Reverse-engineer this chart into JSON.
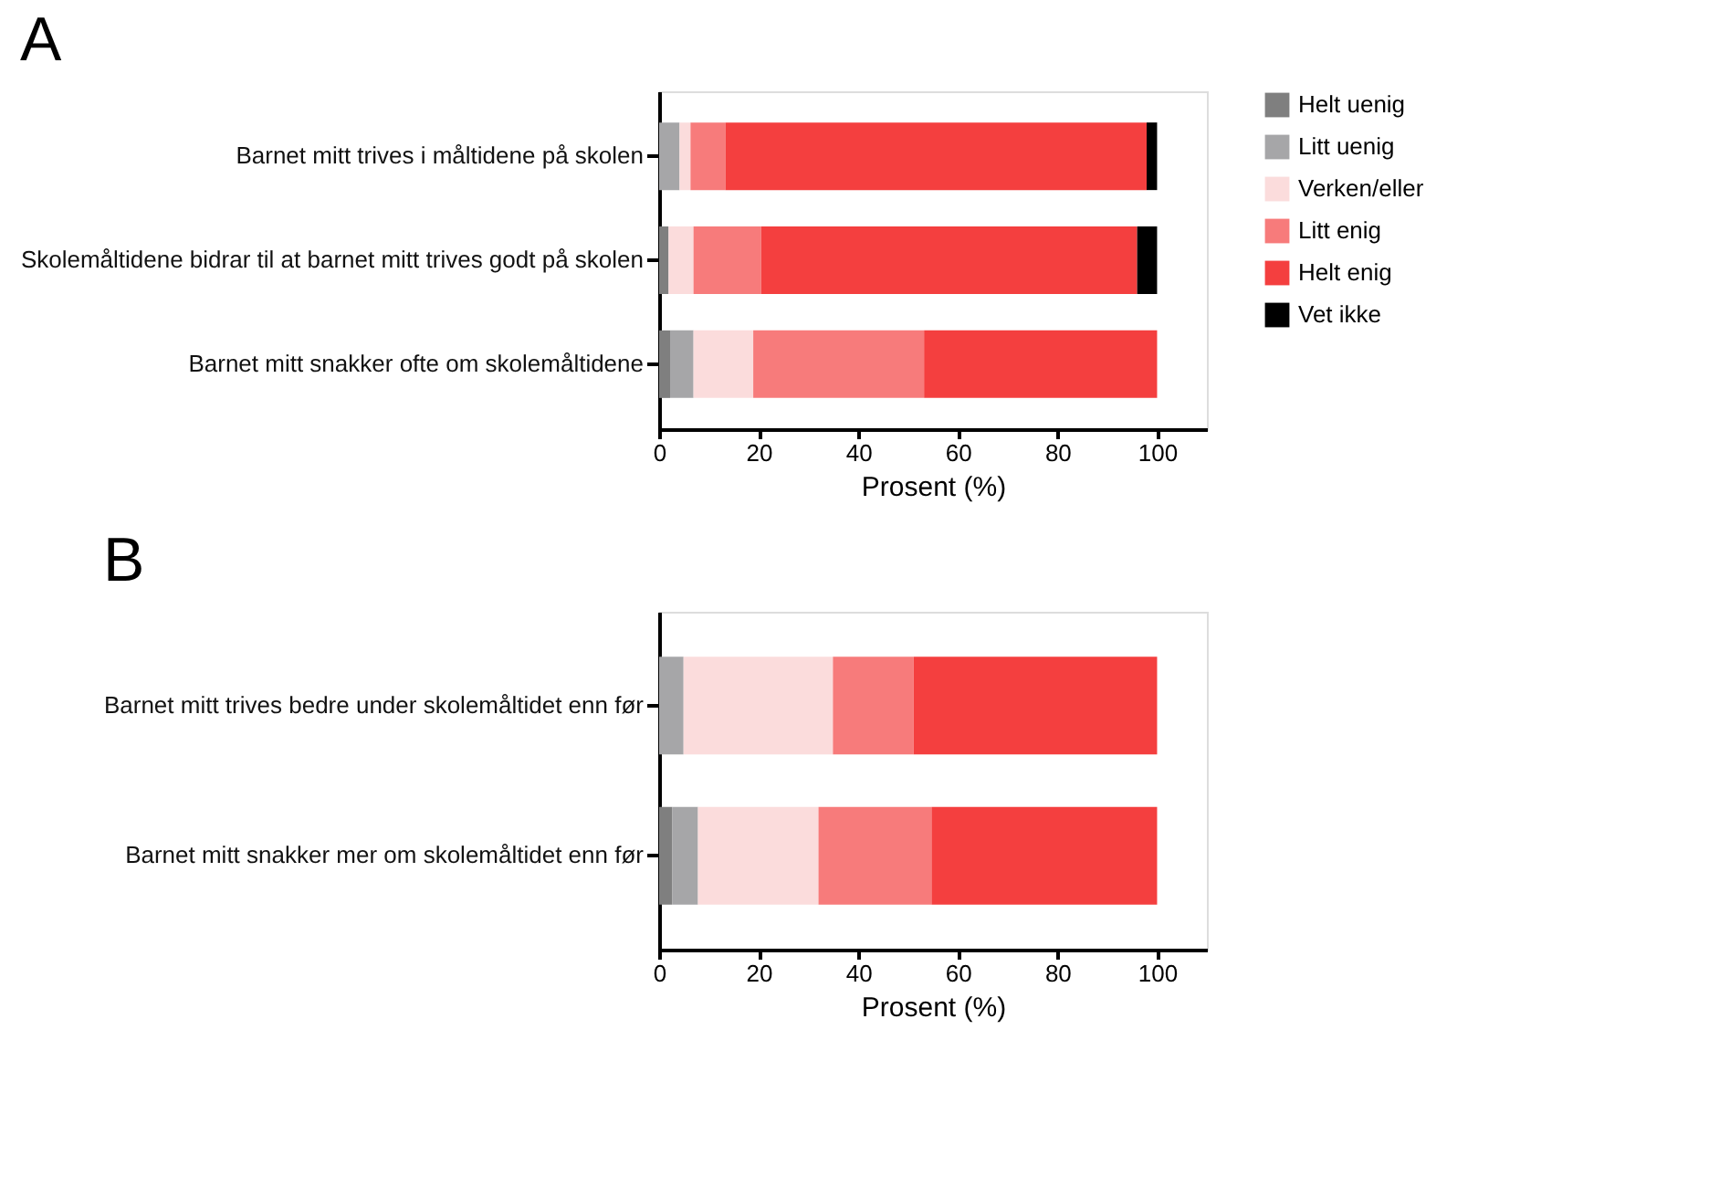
{
  "chart_data": [
    {
      "type": "bar",
      "orientation": "horizontal",
      "stacked": true,
      "title": "A",
      "xlabel": "Prosent (%)",
      "xlim": [
        0,
        110
      ],
      "xticks": [
        0,
        20,
        40,
        60,
        80,
        100
      ],
      "grid": false,
      "legend": "right",
      "categories": [
        "Barnet mitt trives i måltidene på skolen",
        "Skolemåltidene bidrar til at barnet mitt trives godt på skolen",
        "Barnet mitt snakker ofte om skolemåltidene"
      ],
      "series": [
        {
          "name": "Helt uenig",
          "color": "#7f7f7f",
          "values": [
            0,
            1.9,
            2.2
          ]
        },
        {
          "name": "Litt uenig",
          "color": "#a6a6a8",
          "values": [
            4.1,
            0,
            4.7
          ]
        },
        {
          "name": "Verken/eller",
          "color": "#fbdcdc",
          "values": [
            2.2,
            5,
            12
          ]
        },
        {
          "name": "Litt enig",
          "color": "#f77b7b",
          "values": [
            7,
            13.6,
            34.3
          ]
        },
        {
          "name": "Helt enig",
          "color": "#f43f3f",
          "values": [
            84.6,
            75.5,
            46.8
          ]
        },
        {
          "name": "Vet ikke",
          "color": "#000000",
          "values": [
            2.1,
            4,
            0
          ]
        }
      ]
    },
    {
      "type": "bar",
      "orientation": "horizontal",
      "stacked": true,
      "title": "B",
      "xlabel": "Prosent (%)",
      "xlim": [
        0,
        110
      ],
      "xticks": [
        0,
        20,
        40,
        60,
        80,
        100
      ],
      "grid": false,
      "legend": "right",
      "categories": [
        "Barnet mitt trives bedre under skolemåltidet enn før",
        "Barnet mitt snakker mer om skolemåltidet enn før"
      ],
      "series": [
        {
          "name": "Helt uenig",
          "color": "#7f7f7f",
          "values": [
            0,
            2.6
          ]
        },
        {
          "name": "Litt uenig",
          "color": "#a6a6a8",
          "values": [
            4.9,
            5.2
          ]
        },
        {
          "name": "Verken/eller",
          "color": "#fbdcdc",
          "values": [
            30,
            24.2
          ]
        },
        {
          "name": "Litt enig",
          "color": "#f77b7b",
          "values": [
            16.2,
            22.7
          ]
        },
        {
          "name": "Helt enig",
          "color": "#f43f3f",
          "values": [
            48.9,
            45.3
          ]
        }
      ]
    }
  ]
}
